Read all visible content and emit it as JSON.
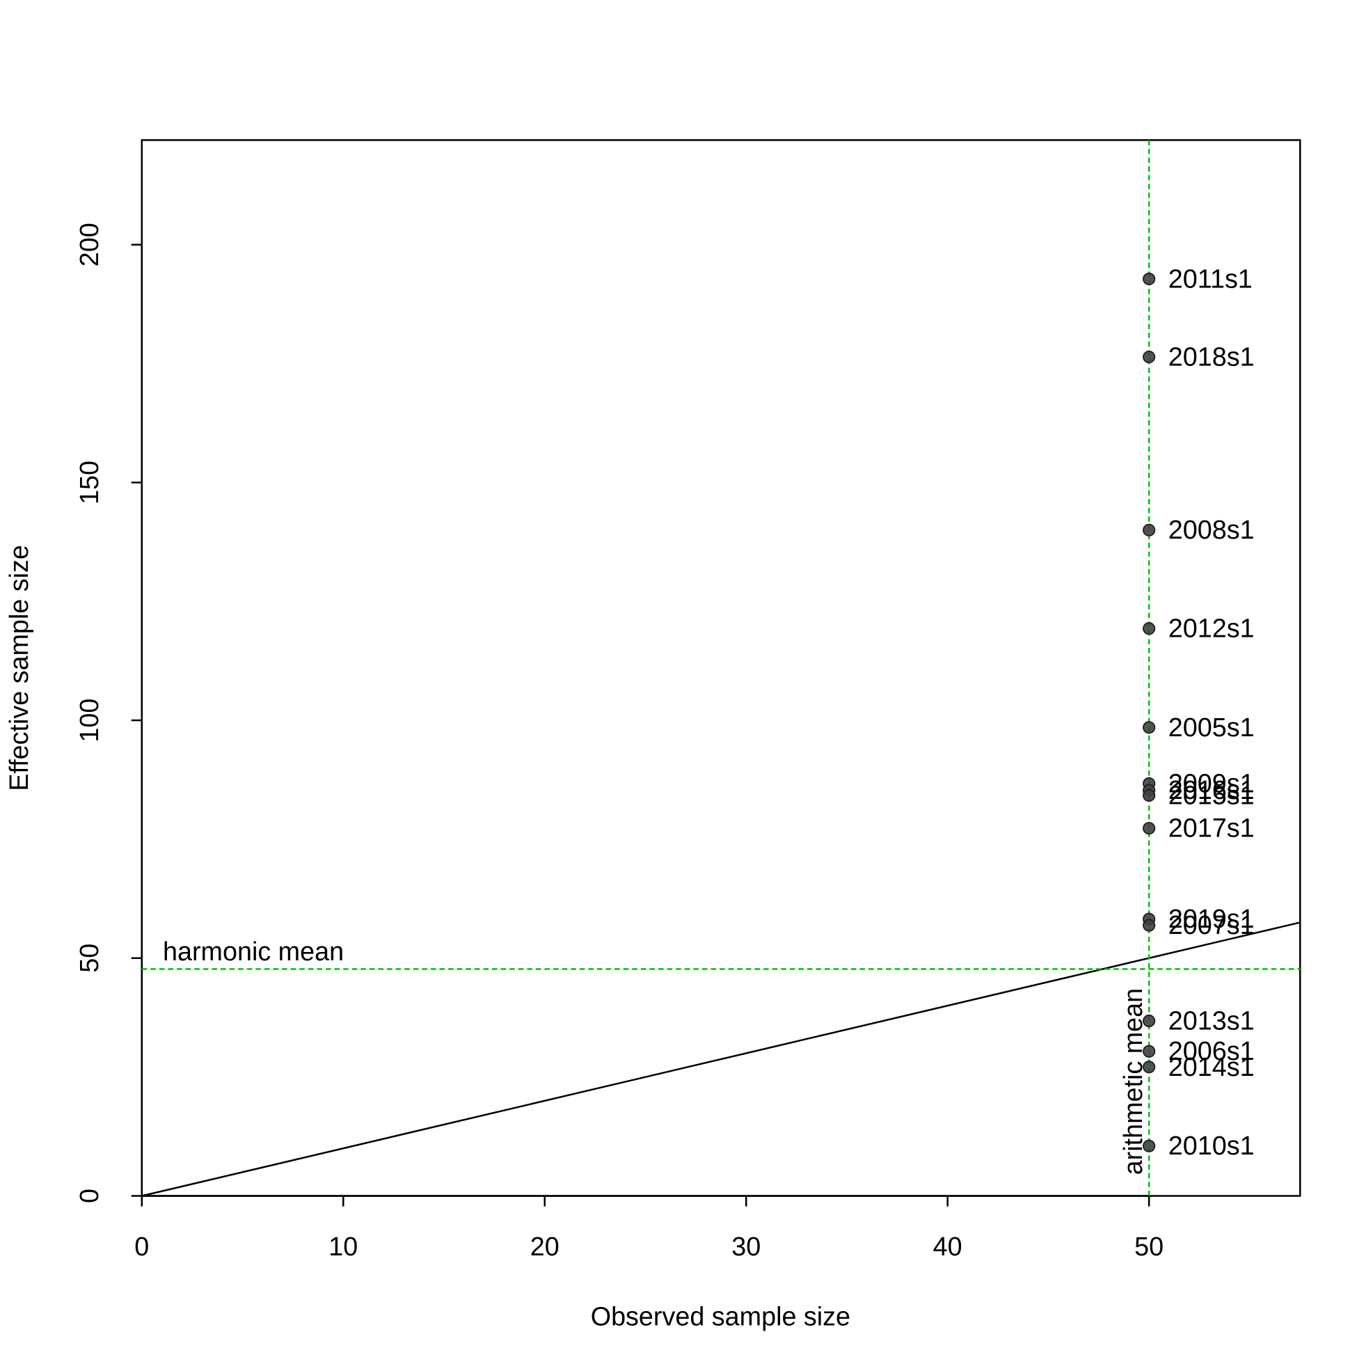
{
  "chart_data": {
    "type": "scatter",
    "x_label": "Observed sample size",
    "y_label": "Effective sample size",
    "series": [
      {
        "color": "#404040",
        "labels": [
          "2011s1",
          "2018s1",
          "2008s1",
          "2012s1",
          "2005s1",
          "2009s1",
          "2016s1",
          "2015s1",
          "2017s1",
          "2019s1",
          "2007s1",
          "2013s1",
          "2006s1",
          "2014s1",
          "2010s1"
        ],
        "x": [
          50,
          50,
          50,
          50,
          50,
          50,
          50,
          50,
          50,
          50,
          50,
          50,
          50,
          50,
          50
        ],
        "values": [
          192.8,
          176.4,
          140.0,
          119.3,
          98.5,
          86.7,
          85.3,
          84.2,
          77.3,
          58.2,
          56.9,
          36.8,
          30.4,
          27.1,
          10.5
        ]
      }
    ],
    "reference_lines": [
      {
        "name": "harmonic mean",
        "axis": "y",
        "value": 47.7,
        "color": "#00c000"
      },
      {
        "name": "arithmetic mean",
        "axis": "x",
        "value": 50,
        "color": "#00c000"
      }
    ],
    "xlim": [
      0,
      57.5
    ],
    "ylim": [
      0,
      222
    ],
    "xticks": [
      0,
      10,
      20,
      30,
      40,
      50
    ],
    "yticks": [
      0,
      50,
      100,
      150,
      200
    ]
  }
}
